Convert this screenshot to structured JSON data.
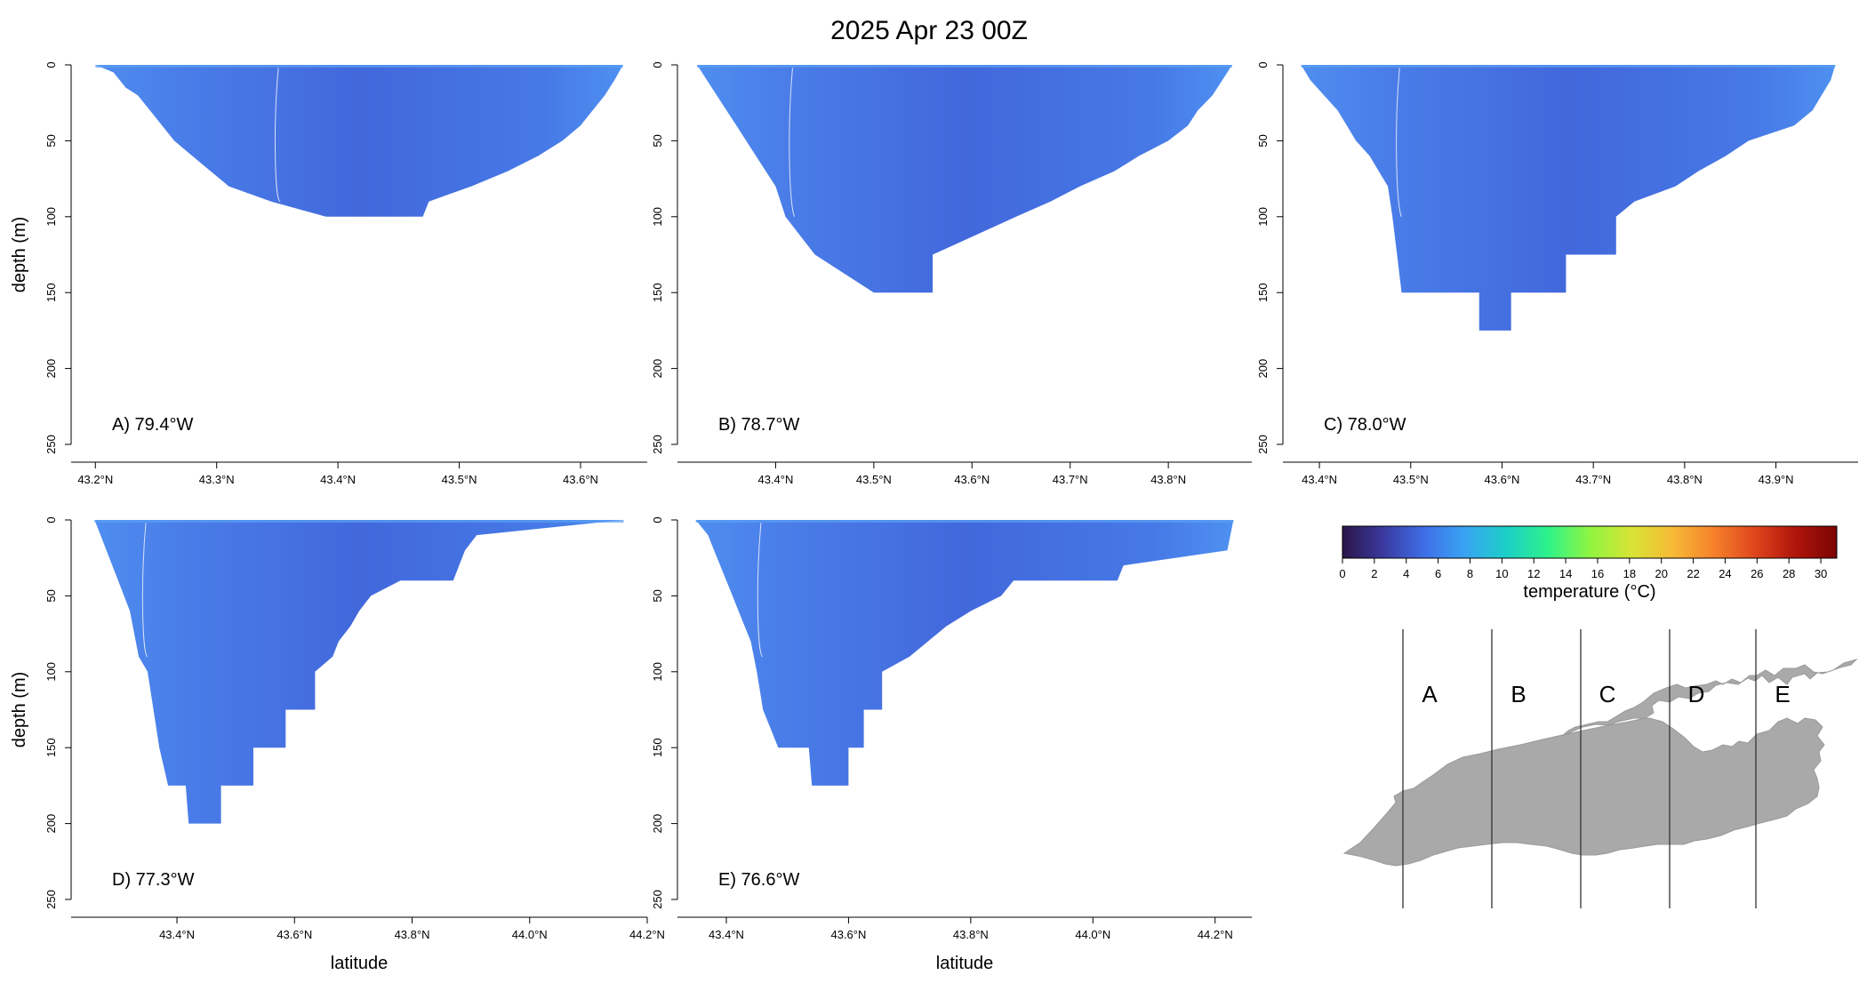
{
  "title": "2025 Apr 23 00Z",
  "chart_data": [
    {
      "type": "heatmap",
      "label": "A) 79.4°W",
      "xlim": [
        43.18,
        43.655
      ],
      "xticks": [
        43.2,
        43.3,
        43.4,
        43.5,
        43.6
      ],
      "xtick_labels": [
        "43.2°N",
        "43.3°N",
        "43.4°N",
        "43.5°N",
        "43.6°N"
      ],
      "ylim": [
        0,
        250
      ],
      "yticks": [
        0,
        50,
        100,
        150,
        200,
        250
      ],
      "ylabel": "depth (m)",
      "xlabel": "",
      "profile": [
        [
          43.2,
          0
        ],
        [
          43.215,
          5
        ],
        [
          43.225,
          15
        ],
        [
          43.235,
          20
        ],
        [
          43.245,
          30
        ],
        [
          43.255,
          40
        ],
        [
          43.265,
          50
        ],
        [
          43.28,
          60
        ],
        [
          43.295,
          70
        ],
        [
          43.31,
          80
        ],
        [
          43.345,
          90
        ],
        [
          43.39,
          100
        ],
        [
          43.47,
          100
        ],
        [
          43.475,
          90
        ],
        [
          43.51,
          80
        ],
        [
          43.54,
          70
        ],
        [
          43.565,
          60
        ],
        [
          43.585,
          50
        ],
        [
          43.6,
          40
        ],
        [
          43.61,
          30
        ],
        [
          43.62,
          20
        ],
        [
          43.628,
          10
        ],
        [
          43.635,
          0
        ]
      ],
      "surface_temp_range": [
        4,
        6
      ]
    },
    {
      "type": "heatmap",
      "label": "B) 78.7°W",
      "xlim": [
        43.3,
        43.885
      ],
      "xticks": [
        43.4,
        43.5,
        43.6,
        43.7,
        43.8
      ],
      "xtick_labels": [
        "43.4°N",
        "43.5°N",
        "43.6°N",
        "43.7°N",
        "43.8°N"
      ],
      "ylim": [
        0,
        250
      ],
      "yticks": [
        0,
        50,
        100,
        150,
        200,
        250
      ],
      "ylabel": "",
      "xlabel": "",
      "profile": [
        [
          43.32,
          0
        ],
        [
          43.33,
          10
        ],
        [
          43.34,
          20
        ],
        [
          43.35,
          30
        ],
        [
          43.36,
          40
        ],
        [
          43.37,
          50
        ],
        [
          43.38,
          60
        ],
        [
          43.39,
          70
        ],
        [
          43.4,
          80
        ],
        [
          43.41,
          100
        ],
        [
          43.44,
          125
        ],
        [
          43.5,
          150
        ],
        [
          43.56,
          150
        ],
        [
          43.56,
          125
        ],
        [
          43.645,
          100
        ],
        [
          43.68,
          90
        ],
        [
          43.71,
          80
        ],
        [
          43.745,
          70
        ],
        [
          43.77,
          60
        ],
        [
          43.8,
          50
        ],
        [
          43.82,
          40
        ],
        [
          43.83,
          30
        ],
        [
          43.845,
          20
        ],
        [
          43.855,
          10
        ],
        [
          43.865,
          0
        ]
      ],
      "surface_temp_range": [
        4,
        6
      ]
    },
    {
      "type": "heatmap",
      "label": "C) 78.0°W",
      "xlim": [
        43.36,
        43.99
      ],
      "xticks": [
        43.4,
        43.5,
        43.6,
        43.7,
        43.8,
        43.9
      ],
      "xtick_labels": [
        "43.4°N",
        "43.5°N",
        "43.6°N",
        "43.7°N",
        "43.8°N",
        "43.9°N"
      ],
      "ylim": [
        0,
        250
      ],
      "yticks": [
        0,
        50,
        100,
        150,
        200,
        250
      ],
      "ylabel": "",
      "xlabel": "",
      "profile": [
        [
          43.38,
          0
        ],
        [
          43.39,
          10
        ],
        [
          43.405,
          20
        ],
        [
          43.42,
          30
        ],
        [
          43.43,
          40
        ],
        [
          43.44,
          50
        ],
        [
          43.455,
          60
        ],
        [
          43.465,
          70
        ],
        [
          43.475,
          80
        ],
        [
          43.48,
          100
        ],
        [
          43.485,
          125
        ],
        [
          43.49,
          150
        ],
        [
          43.575,
          150
        ],
        [
          43.575,
          175
        ],
        [
          43.61,
          175
        ],
        [
          43.61,
          150
        ],
        [
          43.67,
          150
        ],
        [
          43.67,
          125
        ],
        [
          43.725,
          125
        ],
        [
          43.725,
          100
        ],
        [
          43.745,
          90
        ],
        [
          43.79,
          80
        ],
        [
          43.815,
          70
        ],
        [
          43.845,
          60
        ],
        [
          43.87,
          50
        ],
        [
          43.92,
          40
        ],
        [
          43.94,
          30
        ],
        [
          43.95,
          20
        ],
        [
          43.96,
          10
        ],
        [
          43.965,
          0
        ]
      ],
      "surface_temp_range": [
        4,
        6
      ]
    },
    {
      "type": "heatmap",
      "label": "D) 77.3°W",
      "xlim": [
        43.22,
        44.2
      ],
      "xticks": [
        43.4,
        43.6,
        43.8,
        44.0,
        44.2
      ],
      "xtick_labels": [
        "43.4°N",
        "43.6°N",
        "43.8°N",
        "44.0°N",
        "44.2°N"
      ],
      "ylim": [
        0,
        250
      ],
      "yticks": [
        0,
        50,
        100,
        150,
        200,
        250
      ],
      "ylabel": "depth (m)",
      "xlabel": "latitude",
      "profile": [
        [
          43.26,
          0
        ],
        [
          43.27,
          10
        ],
        [
          43.28,
          20
        ],
        [
          43.29,
          30
        ],
        [
          43.3,
          40
        ],
        [
          43.31,
          50
        ],
        [
          43.32,
          60
        ],
        [
          43.325,
          70
        ],
        [
          43.33,
          80
        ],
        [
          43.335,
          90
        ],
        [
          43.35,
          100
        ],
        [
          43.36,
          125
        ],
        [
          43.37,
          150
        ],
        [
          43.385,
          175
        ],
        [
          43.415,
          175
        ],
        [
          43.42,
          200
        ],
        [
          43.475,
          200
        ],
        [
          43.475,
          175
        ],
        [
          43.53,
          175
        ],
        [
          43.53,
          150
        ],
        [
          43.585,
          150
        ],
        [
          43.585,
          125
        ],
        [
          43.635,
          125
        ],
        [
          43.635,
          100
        ],
        [
          43.665,
          90
        ],
        [
          43.675,
          80
        ],
        [
          43.695,
          70
        ],
        [
          43.71,
          60
        ],
        [
          43.73,
          50
        ],
        [
          43.78,
          40
        ],
        [
          43.87,
          40
        ],
        [
          43.88,
          30
        ],
        [
          43.89,
          20
        ],
        [
          43.91,
          10
        ],
        [
          44.16,
          0
        ]
      ],
      "surface_temp_range": [
        4,
        7
      ]
    },
    {
      "type": "heatmap",
      "label": "E) 76.6°W",
      "xlim": [
        43.32,
        44.26
      ],
      "xticks": [
        43.4,
        43.6,
        43.8,
        44.0,
        44.2
      ],
      "xtick_labels": [
        "43.4°N",
        "43.6°N",
        "43.8°N",
        "44.0°N",
        "44.2°N"
      ],
      "ylim": [
        0,
        250
      ],
      "yticks": [
        0,
        50,
        100,
        150,
        200,
        250
      ],
      "ylabel": "",
      "xlabel": "latitude",
      "profile": [
        [
          43.35,
          0
        ],
        [
          43.37,
          10
        ],
        [
          43.38,
          20
        ],
        [
          43.39,
          30
        ],
        [
          43.4,
          40
        ],
        [
          43.41,
          50
        ],
        [
          43.42,
          60
        ],
        [
          43.43,
          70
        ],
        [
          43.44,
          80
        ],
        [
          43.445,
          90
        ],
        [
          43.45,
          100
        ],
        [
          43.46,
          125
        ],
        [
          43.485,
          150
        ],
        [
          43.535,
          150
        ],
        [
          43.54,
          175
        ],
        [
          43.6,
          175
        ],
        [
          43.6,
          150
        ],
        [
          43.625,
          150
        ],
        [
          43.625,
          125
        ],
        [
          43.655,
          125
        ],
        [
          43.655,
          100
        ],
        [
          43.7,
          90
        ],
        [
          43.73,
          80
        ],
        [
          43.76,
          70
        ],
        [
          43.8,
          60
        ],
        [
          43.85,
          50
        ],
        [
          43.87,
          40
        ],
        [
          44.04,
          40
        ],
        [
          44.05,
          30
        ],
        [
          44.22,
          20
        ],
        [
          44.23,
          0
        ]
      ],
      "surface_temp_range": [
        4,
        6
      ]
    }
  ],
  "colorbar": {
    "label": "temperature (°C)",
    "min": 0,
    "max": 31,
    "ticks": [
      0,
      2,
      4,
      6,
      8,
      10,
      12,
      14,
      16,
      18,
      20,
      22,
      24,
      26,
      28,
      30
    ],
    "tick_labels": [
      "0",
      "2",
      "4",
      "6",
      "8",
      "10",
      "12",
      "14",
      "16",
      "18",
      "20",
      "22",
      "24",
      "26",
      "28",
      "30"
    ],
    "colors": [
      "#2a1547",
      "#3a3aa0",
      "#3f6fe8",
      "#38a5f2",
      "#1cd0c6",
      "#2ef28a",
      "#8ff542",
      "#d7e435",
      "#f7bb37",
      "#f6822b",
      "#e0461c",
      "#b0150c",
      "#7a0403"
    ]
  },
  "map": {
    "section_letters": [
      "A",
      "B",
      "C",
      "D",
      "E"
    ],
    "lake_color": "#a9a9a9"
  },
  "colors": {
    "section_fill_deep": "#3f66dd",
    "section_fill_mid": "#4477e6",
    "contour": "#d8e2f7"
  }
}
